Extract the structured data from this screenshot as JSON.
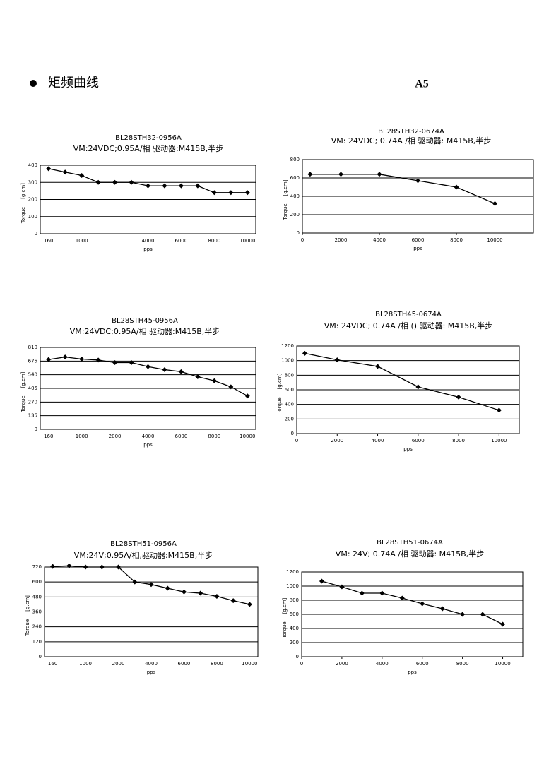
{
  "header": {
    "title": "矩频曲线",
    "page": "A5"
  },
  "chart_data": [
    {
      "type": "line",
      "title": "BL28STH32-0956A",
      "subtitle": "VM:24VDC;0.95A/相 驱动器:M415B,半步",
      "ylabel": "Torque",
      "yunit": "[g.cm]",
      "xlabel": "pps",
      "categories": [
        "160",
        null,
        "1000",
        null,
        null,
        null,
        "4000",
        null,
        "6000",
        null,
        "8000",
        null,
        "10000"
      ],
      "values": [
        380,
        360,
        340,
        300,
        300,
        300,
        280,
        280,
        280,
        280,
        240,
        240,
        240
      ],
      "color": "#000000",
      "ylim": [
        0,
        400
      ],
      "yticks": [
        0,
        100,
        200,
        300,
        400
      ],
      "grid": true
    },
    {
      "type": "line",
      "title": "BL28STH32-0674A",
      "subtitle": "VM: 24VDC;  0.74A /相  驱动器: M415B,半步",
      "ylabel": "Torque",
      "yunit": "[g.cm]",
      "xlabel": "pps",
      "x": [
        400,
        2000,
        4000,
        6000,
        8000,
        10000
      ],
      "values": [
        640,
        640,
        640,
        570,
        500,
        320
      ],
      "color": "#000000",
      "xlim": [
        0,
        12000
      ],
      "xticks": [
        0,
        2000,
        4000,
        6000,
        8000,
        10000
      ],
      "ylim": [
        0,
        800
      ],
      "yticks": [
        0,
        200,
        400,
        600,
        800
      ],
      "grid": true
    },
    {
      "type": "line",
      "title": "BL28STH45-0956A",
      "subtitle": "VM:24VDC;0.95A/相 驱动器:M415B,半步",
      "ylabel": "Torque",
      "yunit": "[g.cm]",
      "xlabel": "pps",
      "categories": [
        "160",
        null,
        "1000",
        null,
        "2000",
        null,
        "4000",
        null,
        "6000",
        null,
        "8000",
        null,
        "10000"
      ],
      "values": [
        690,
        715,
        695,
        685,
        660,
        660,
        620,
        590,
        570,
        520,
        480,
        420,
        330
      ],
      "color": "#000000",
      "ylim": [
        0,
        810
      ],
      "yticks": [
        0,
        135,
        270,
        405,
        540,
        675,
        810
      ],
      "grid": true
    },
    {
      "type": "line",
      "title": "BL28STH45-0674A",
      "subtitle": "VM: 24VDC;  0.74A /相 ()  驱动器: M415B,半步",
      "ylabel": "Torque",
      "yunit": "[g.cm]",
      "xlabel": "pps",
      "x": [
        400,
        2000,
        4000,
        6000,
        8000,
        10000
      ],
      "values": [
        1100,
        1010,
        920,
        640,
        500,
        320
      ],
      "color": "#000000",
      "xlim": [
        0,
        11000
      ],
      "xticks": [
        0,
        2000,
        4000,
        6000,
        8000,
        10000
      ],
      "ylim": [
        0,
        1200
      ],
      "yticks": [
        0,
        200,
        400,
        600,
        800,
        1000,
        1200
      ],
      "grid": true
    },
    {
      "type": "line",
      "title": "BL28STH51-0956A",
      "subtitle": "VM:24V;0.95A/相,驱动器:M415B,半步",
      "ylabel": "Torque",
      "yunit": "[g.cm]",
      "xlabel": "pps",
      "categories": [
        "160",
        null,
        "1000",
        null,
        "2000",
        null,
        "4000",
        null,
        "6000",
        null,
        "8000",
        null,
        "10000"
      ],
      "values": [
        725,
        730,
        720,
        720,
        720,
        600,
        580,
        550,
        520,
        510,
        485,
        450,
        420
      ],
      "color": "#000000",
      "ylim": [
        0,
        720
      ],
      "yticks": [
        0,
        120,
        240,
        360,
        480,
        600,
        720
      ],
      "grid": true
    },
    {
      "type": "line",
      "title": "BL28STH51-0674A",
      "subtitle": "VM: 24V;  0.74A /相  驱动器: M415B,半步",
      "ylabel": "Torque",
      "yunit": "[g.cm]",
      "xlabel": "pps",
      "x": [
        1000,
        2000,
        3000,
        4000,
        5000,
        6000,
        7000,
        8000,
        9000,
        10000
      ],
      "values": [
        1070,
        990,
        900,
        900,
        830,
        750,
        680,
        600,
        600,
        460
      ],
      "color": "#000000",
      "xlim": [
        0,
        11000
      ],
      "xticks": [
        0,
        2000,
        4000,
        6000,
        8000,
        10000
      ],
      "ylim": [
        0,
        1200
      ],
      "yticks": [
        0,
        200,
        400,
        600,
        800,
        1000,
        1200
      ],
      "grid": true
    }
  ]
}
